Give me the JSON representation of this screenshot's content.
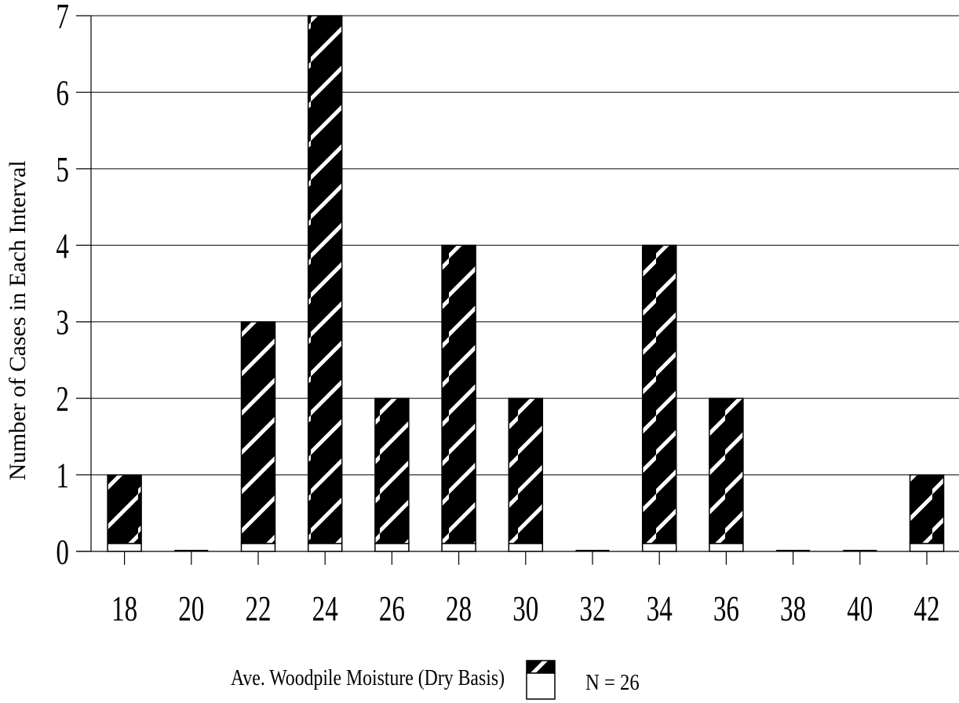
{
  "chart_data": {
    "type": "bar",
    "categories": [
      "18",
      "20",
      "22",
      "24",
      "26",
      "28",
      "30",
      "32",
      "34",
      "36",
      "38",
      "40",
      "42"
    ],
    "series": [
      {
        "name": "Ave. Woodpile Moisture (Dry Basis)",
        "values": [
          1,
          0,
          3,
          7,
          2,
          4,
          2,
          0,
          4,
          2,
          0,
          0,
          1
        ]
      }
    ],
    "ylabel": "Number of Cases in Each Interval",
    "yticks": [
      "0",
      "1",
      "2",
      "3",
      "4",
      "5",
      "6",
      "7"
    ],
    "ylim": [
      0,
      7
    ],
    "grid": true,
    "legend_position": "bottom",
    "annotation": "N = 26",
    "colors": {
      "bar_fill": "#000000",
      "hatch": "#ffffff",
      "grid": "#000000"
    }
  }
}
